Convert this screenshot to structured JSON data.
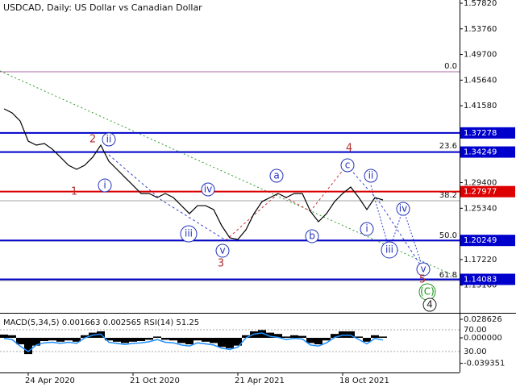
{
  "chart_data": [
    {
      "type": "line",
      "title": "USDCAD, Daily:  US Dollar vs Canadian Dollar",
      "color": "#000000",
      "categories": [
        null,
        null,
        null,
        "24 Apr 2020",
        null,
        null,
        null,
        null,
        null,
        null,
        null,
        null,
        null,
        null,
        null,
        null,
        "21 Oct 2020",
        null,
        null,
        null,
        null,
        null,
        null,
        null,
        null,
        null,
        null,
        null,
        null,
        "21 Apr 2021",
        null,
        null,
        null,
        null,
        null,
        null,
        null,
        null,
        null,
        null,
        null,
        null,
        "18 Oct 2021",
        null,
        null,
        null,
        null,
        null
      ],
      "values": [
        1.4109,
        1.4045,
        1.3917,
        1.3598,
        1.3534,
        1.356,
        1.347,
        1.3343,
        1.3215,
        1.3151,
        1.3215,
        1.3343,
        1.3534,
        1.3279,
        1.3151,
        1.3023,
        1.2896,
        1.2768,
        1.2768,
        1.2704,
        1.2768,
        1.2704,
        1.2576,
        1.2449,
        1.2576,
        1.2576,
        1.2513,
        1.2257,
        1.2066,
        1.204,
        1.2193,
        1.2449,
        1.264,
        1.2704,
        1.2768,
        1.2704,
        1.2768,
        1.2768,
        1.2487,
        1.2321,
        1.2449,
        1.264,
        1.2768,
        1.287,
        1.2704,
        1.2513,
        1.2704,
        1.2666
      ],
      "ylim": [
        1.0878,
        1.5833
      ],
      "yticks": [
        {
          "value": 1.5782,
          "label": "1.57820"
        },
        {
          "value": 1.5376,
          "label": "1.53760"
        },
        {
          "value": 1.497,
          "label": "1.49700"
        },
        {
          "value": 1.4564,
          "label": "1.45640"
        },
        {
          "value": 1.4158,
          "label": "1.41580"
        },
        {
          "value": 1.294,
          "label": "1.29400"
        },
        {
          "value": 1.2534,
          "label": "1.25340"
        },
        {
          "value": 1.1722,
          "label": "1.17220"
        },
        {
          "value": 1.1316,
          "label": "1.13160"
        }
      ],
      "levels": [
        {
          "value": 1.37278,
          "color": "#0000cc"
        },
        {
          "value": 1.34249,
          "color": "#0000cc"
        },
        {
          "value": 1.27977,
          "color": "#dd0000"
        },
        {
          "value": 1.20249,
          "color": "#0000cc"
        },
        {
          "value": 1.14083,
          "color": "#0000cc"
        }
      ],
      "fib_levels": [
        {
          "label": "0.0",
          "value": 1.4696
        },
        {
          "label": "23.6",
          "value": 1.3432
        },
        {
          "label": "38.2",
          "value": 1.2653
        },
        {
          "label": "50.0",
          "value": 1.2014
        },
        {
          "label": "61.8",
          "value": 1.1389
        }
      ],
      "annotations": [
        {
          "text": "2",
          "x": 11,
          "y": 1.3624,
          "style": "red"
        },
        {
          "text": "ii",
          "x": 13,
          "y": 1.3624,
          "style": "circle"
        },
        {
          "text": "i",
          "x": 12.5,
          "y": 1.2896,
          "style": "circle"
        },
        {
          "text": "1",
          "x": 8.7,
          "y": 1.2793,
          "style": "red"
        },
        {
          "text": "iv",
          "x": 25.3,
          "y": 1.2832,
          "style": "circle"
        },
        {
          "text": "iii",
          "x": 22.9,
          "y": 1.2129,
          "style": "circle"
        },
        {
          "text": "v",
          "x": 27.1,
          "y": 1.1861,
          "style": "circle"
        },
        {
          "text": "3",
          "x": 26.9,
          "y": 1.1657,
          "style": "red"
        },
        {
          "text": "a",
          "x": 33.8,
          "y": 1.3049,
          "style": "circle"
        },
        {
          "text": "b",
          "x": 38.2,
          "y": 1.2091,
          "style": "circle"
        },
        {
          "text": "c",
          "x": 42.6,
          "y": 1.3215,
          "style": "circle"
        },
        {
          "text": "4",
          "x": 42.8,
          "y": 1.3483,
          "style": "red"
        },
        {
          "text": "ii",
          "x": 45.5,
          "y": 1.3049,
          "style": "circle"
        },
        {
          "text": "i",
          "x": 45,
          "y": 1.2206,
          "style": "circle"
        },
        {
          "text": "iv",
          "x": 49.5,
          "y": 1.2525,
          "style": "circle"
        },
        {
          "text": "iii",
          "x": 47.8,
          "y": 1.1874,
          "style": "circle"
        },
        {
          "text": "v",
          "x": 52,
          "y": 1.1567,
          "style": "circle"
        },
        {
          "text": "5",
          "x": 51.9,
          "y": 1.1401,
          "style": "red"
        },
        {
          "text": "(C)",
          "x": 52.5,
          "y": 1.121,
          "style": "green"
        },
        {
          "text": "4",
          "x": 52.8,
          "y": 1.1005,
          "style": "dark"
        }
      ]
    },
    {
      "type": "bar",
      "title": "MACD(5,34,5) 0.001663 0.002565 RSI(14) 51.25",
      "color": "#000000",
      "values": [
        0.005,
        0.004,
        -0.01,
        -0.025,
        -0.012,
        -0.005,
        -0.004,
        -0.006,
        -0.004,
        -0.006,
        0.004,
        0.008,
        0.01,
        -0.004,
        -0.006,
        -0.008,
        -0.006,
        -0.005,
        -0.003,
        0.002,
        -0.003,
        -0.004,
        -0.008,
        -0.01,
        -0.004,
        -0.006,
        -0.008,
        -0.014,
        -0.016,
        -0.012,
        0.004,
        0.01,
        0.012,
        0.008,
        0.006,
        0.002,
        0.004,
        0.003,
        -0.008,
        -0.01,
        -0.004,
        0.006,
        0.01,
        0.01,
        0.002,
        -0.006,
        0.004,
        0.002
      ],
      "series": [
        {
          "color": "#1e90ff",
          "axis": "y2",
          "values": [
            54,
            52,
            40,
            30,
            42,
            46,
            47,
            45,
            47,
            45,
            55,
            60,
            62,
            47,
            45,
            43,
            45,
            46,
            48,
            52,
            47,
            46,
            42,
            40,
            46,
            44,
            42,
            36,
            34,
            38,
            55,
            62,
            64,
            58,
            56,
            52,
            54,
            53,
            42,
            40,
            46,
            56,
            60,
            60,
            52,
            44,
            54,
            51
          ]
        }
      ],
      "ylim": [
        -0.0535,
        0.0386
      ],
      "yticks": [
        0.028626,
        {
          "value": 0,
          "label": "0.000000"
        },
        -0.039351
      ],
      "y2lim": [
        -8.5,
        101.1
      ],
      "y2ticks": [
        {
          "value": 70,
          "label": "70.00"
        },
        {
          "value": 30,
          "label": "30.00"
        }
      ]
    }
  ]
}
